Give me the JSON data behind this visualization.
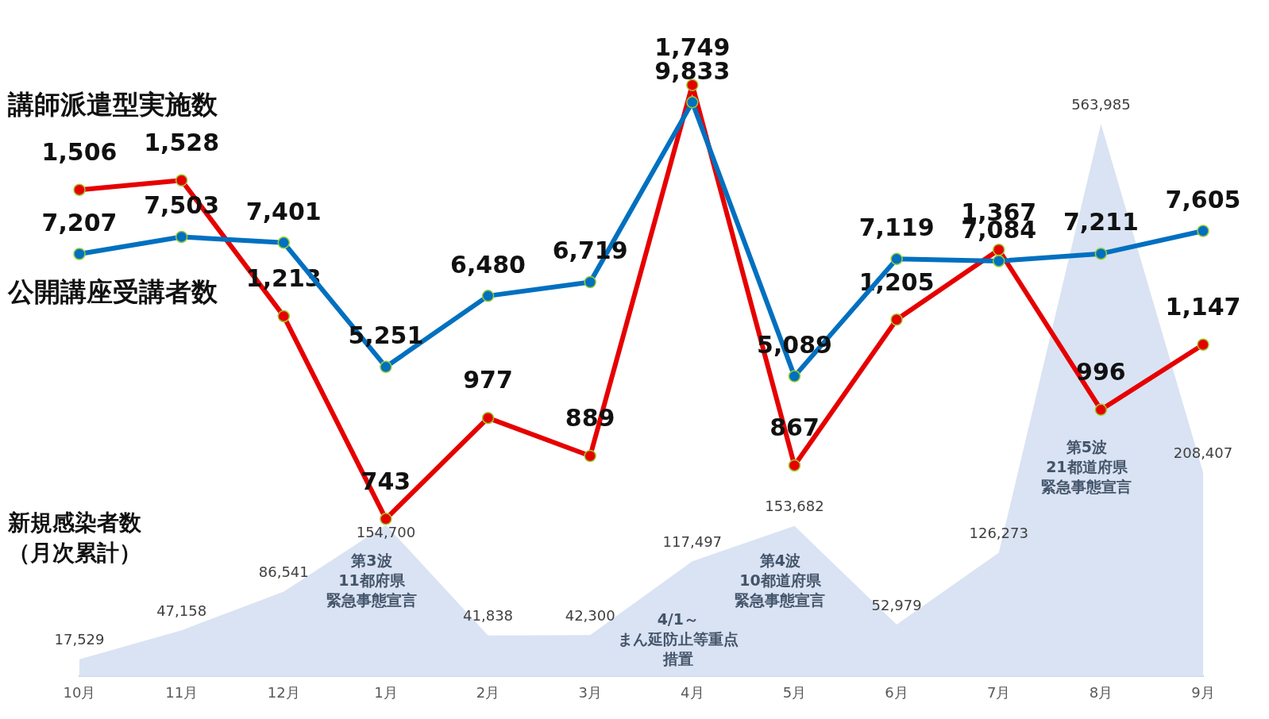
{
  "chart_data": [
    {
      "type": "line",
      "categories": [
        null,
        null,
        null,
        null,
        null,
        null,
        null,
        null,
        null,
        null,
        null,
        null
      ],
      "series": [
        {
          "name": "講師派遣型実施数",
          "color": "#e60000",
          "values": [
            1506,
            1528,
            1213,
            743,
            977,
            889,
            1749,
            867,
            1205,
            1367,
            996,
            1147
          ],
          "value_labels": [
            "1,506",
            "1,528",
            "1,213",
            "743",
            "977",
            "889",
            "1,749",
            "867",
            "1,205",
            "1,367",
            "996",
            "1,147"
          ]
        }
      ],
      "tick_labels": false,
      "marker": "circle"
    },
    {
      "type": "line",
      "categories": [
        null,
        null,
        null,
        null,
        null,
        null,
        null,
        null,
        null,
        null,
        null,
        null
      ],
      "series": [
        {
          "name": "公開講座受講者数",
          "color": "#0070c0",
          "values": [
            7207,
            7503,
            7401,
            5251,
            6480,
            6719,
            9833,
            5089,
            7119,
            7084,
            7211,
            7605
          ],
          "value_labels": [
            "7,207",
            "7,503",
            "7,401",
            "5,251",
            "6,480",
            "6,719",
            "9,833",
            "5,089",
            "7,119",
            "7,084",
            "7,211",
            "7,605"
          ]
        }
      ],
      "tick_labels": false,
      "marker": "circle"
    },
    {
      "type": "area",
      "categories": [
        "10月",
        "11月",
        "12月",
        "1月",
        "2月",
        "3月",
        "4月",
        "5月",
        "6月",
        "7月",
        "8月",
        "9月"
      ],
      "series": [
        {
          "name": "新規感染者数（月次累計）",
          "color": "#d9e3f3",
          "values": [
            17529,
            47158,
            86541,
            154700,
            41838,
            42300,
            117497,
            153682,
            52979,
            126273,
            563985,
            208407
          ],
          "value_labels": [
            "17,529",
            "47,158",
            "86,541",
            "154,700",
            "41,838",
            "42,300",
            "117,497",
            "153,682",
            "52,979",
            "126,273",
            "563,985",
            "208,407"
          ]
        }
      ],
      "tick_labels": "x",
      "annotations": [
        "第3波11都府県緊急事態宣言",
        "4/1～まん延防止等重点措置",
        "第4波10都道府県緊急事態宣言",
        "第5波21都道府県緊急事態宣言"
      ]
    }
  ]
}
